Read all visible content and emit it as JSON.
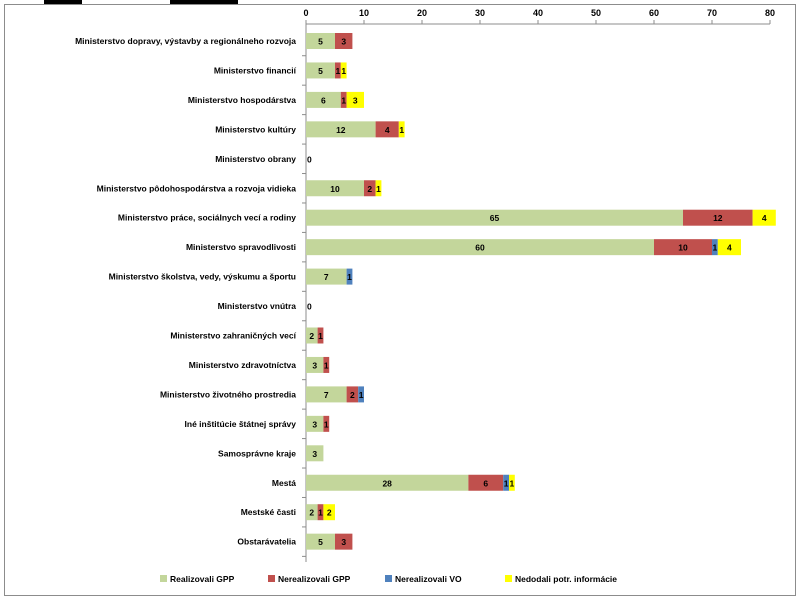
{
  "chart_data": {
    "type": "bar",
    "stacked": true,
    "orientation": "horizontal",
    "title": "",
    "xlabel": "",
    "ylabel": "",
    "xlim": [
      0,
      80
    ],
    "x_ticks": [
      "0",
      "10",
      "20",
      "30",
      "40",
      "50",
      "60",
      "70",
      "80"
    ],
    "x_tick_values": [
      0,
      10,
      20,
      30,
      40,
      50,
      60,
      70,
      80
    ],
    "x_axis_position": "top",
    "grid": "none",
    "legend_position": "bottom",
    "categories": [
      "Ministerstvo dopravy, výstavby a regionálneho rozvoja",
      "Ministerstvo financií",
      "Ministerstvo hospodárstva",
      "Ministerstvo kultúry",
      "Ministerstvo obrany",
      "Ministerstvo pôdohospodárstva a rozvoja vidieka",
      "Ministerstvo práce, sociálnych vecí a rodiny",
      "Ministerstvo spravodlivosti",
      "Ministerstvo školstva, vedy, výskumu a športu",
      "Ministerstvo vnútra",
      "Ministerstvo zahraničných vecí",
      "Ministerstvo zdravotníctva",
      "Ministerstvo životného prostredia",
      "Iné inštitúcie štátnej správy",
      "Samosprávne kraje",
      "Mestá",
      "Mestské časti",
      "Obstarávatelia"
    ],
    "series": [
      {
        "name": "Realizovali GPP",
        "color": "#c3d69b",
        "values": [
          5,
          5,
          6,
          12,
          0,
          10,
          65,
          60,
          7,
          0,
          2,
          3,
          7,
          3,
          3,
          28,
          2,
          5
        ],
        "labels": [
          "5",
          "5",
          "6",
          "12",
          "0",
          "10",
          "65",
          "60",
          "7",
          "0",
          "2",
          "3",
          "7",
          "3",
          "3",
          "28",
          "2",
          "5"
        ]
      },
      {
        "name": "Nerealizovali GPP",
        "color": "#c0504d",
        "values": [
          3,
          1,
          1,
          4,
          0,
          2,
          12,
          10,
          0,
          0,
          1,
          1,
          2,
          1,
          0,
          6,
          1,
          3
        ],
        "labels": [
          "3",
          "1",
          "1",
          "4",
          "",
          "2",
          "12",
          "10",
          "",
          "",
          "1",
          "1",
          "2",
          "1",
          "",
          "6",
          "1",
          "3"
        ]
      },
      {
        "name": "Nerealizovali VO",
        "color": "#4f81bd",
        "values": [
          0,
          0,
          0,
          0,
          0,
          0,
          0,
          1,
          1,
          0,
          0,
          0,
          1,
          0,
          0,
          1,
          0,
          0
        ],
        "labels": [
          "",
          "",
          "",
          "",
          "",
          "",
          "",
          "1",
          "1",
          "",
          "",
          "",
          "1",
          "",
          "",
          "1",
          "",
          ""
        ]
      },
      {
        "name": "Nedodali potr. informácie",
        "color": "#ffff00",
        "values": [
          0,
          1,
          3,
          1,
          0,
          1,
          4,
          4,
          0,
          0,
          0,
          0,
          0,
          0,
          0,
          1,
          2,
          0
        ],
        "labels": [
          "",
          "1",
          "3",
          "1",
          "",
          "1",
          "4",
          "4",
          "",
          "",
          "",
          "",
          "",
          "",
          "",
          "1",
          "2",
          ""
        ]
      }
    ]
  }
}
